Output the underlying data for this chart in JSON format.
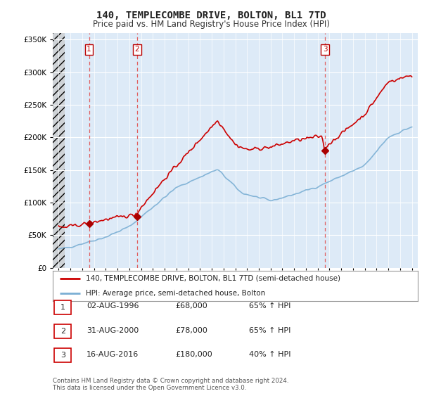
{
  "title": "140, TEMPLECOMBE DRIVE, BOLTON, BL1 7TD",
  "subtitle": "Price paid vs. HM Land Registry's House Price Index (HPI)",
  "legend_line1": "140, TEMPLECOMBE DRIVE, BOLTON, BL1 7TD (semi-detached house)",
  "legend_line2": "HPI: Average price, semi-detached house, Bolton",
  "transactions": [
    {
      "num": 1,
      "date_str": "02-AUG-1996",
      "date_x": 1996.58,
      "price": 68000,
      "pct": "65%",
      "dir": "↑"
    },
    {
      "num": 2,
      "date_str": "31-AUG-2000",
      "date_x": 2000.66,
      "price": 78000,
      "pct": "65%",
      "dir": "↑"
    },
    {
      "num": 3,
      "date_str": "16-AUG-2016",
      "date_x": 2016.62,
      "price": 180000,
      "pct": "40%",
      "dir": "↑"
    }
  ],
  "footnote1": "Contains HM Land Registry data © Crown copyright and database right 2024.",
  "footnote2": "This data is licensed under the Open Government Licence v3.0.",
  "hpi_color": "#7bafd4",
  "price_color": "#cc0000",
  "dashed_color": "#e06060",
  "marker_color": "#aa0000",
  "ylim": [
    0,
    360000
  ],
  "xlim_start": 1993.5,
  "xlim_end": 2024.5,
  "hatch_end": 1994.5,
  "bg_color": "#ddeaf7"
}
